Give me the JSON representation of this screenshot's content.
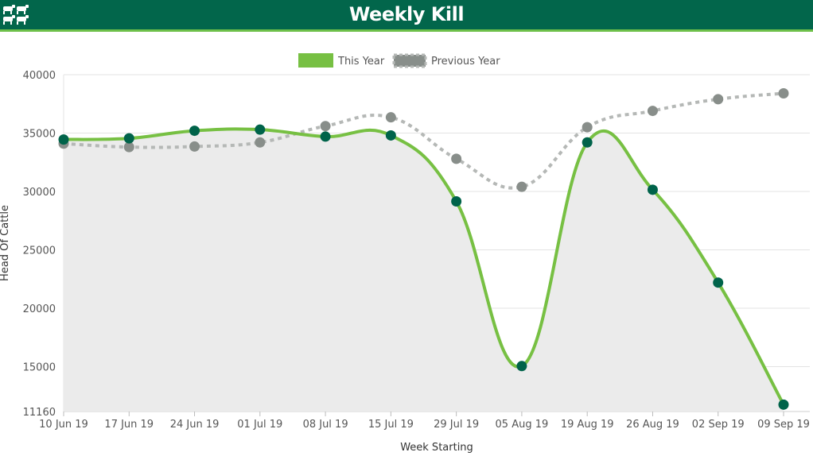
{
  "header": {
    "title": "Weekly Kill",
    "logo_icon": "cattle-icon"
  },
  "colors": {
    "header_bg": "#02664b",
    "accent": "#6ec04a",
    "this_year_line": "#77c043",
    "this_year_point": "#00634a",
    "previous_year": "#888e8a",
    "area_fill": "#ebebeb"
  },
  "chart_data": {
    "type": "line",
    "xlabel": "Week Starting",
    "ylabel": "Head Of Cattle",
    "categories": [
      "10 Jun 19",
      "17 Jun 19",
      "24 Jun 19",
      "01 Jul 19",
      "08 Jul 19",
      "15 Jul 19",
      "29 Jul 19",
      "05 Aug 19",
      "19 Aug 19",
      "26 Aug 19",
      "02 Sep 19",
      "09 Sep 19"
    ],
    "yticks": [
      11160,
      15000,
      20000,
      25000,
      30000,
      35000,
      40000
    ],
    "ylim": [
      11160,
      40000
    ],
    "grid": true,
    "legend_position": "top-center",
    "series": [
      {
        "name": "This Year",
        "style": "solid",
        "values": [
          34450,
          34550,
          35200,
          35300,
          34700,
          34800,
          29150,
          15050,
          34200,
          30150,
          22200,
          11750
        ]
      },
      {
        "name": "Previous Year",
        "style": "dotted",
        "values": [
          34100,
          33800,
          33850,
          34200,
          35600,
          36350,
          32800,
          30400,
          35500,
          36900,
          37900,
          38400
        ]
      }
    ]
  }
}
